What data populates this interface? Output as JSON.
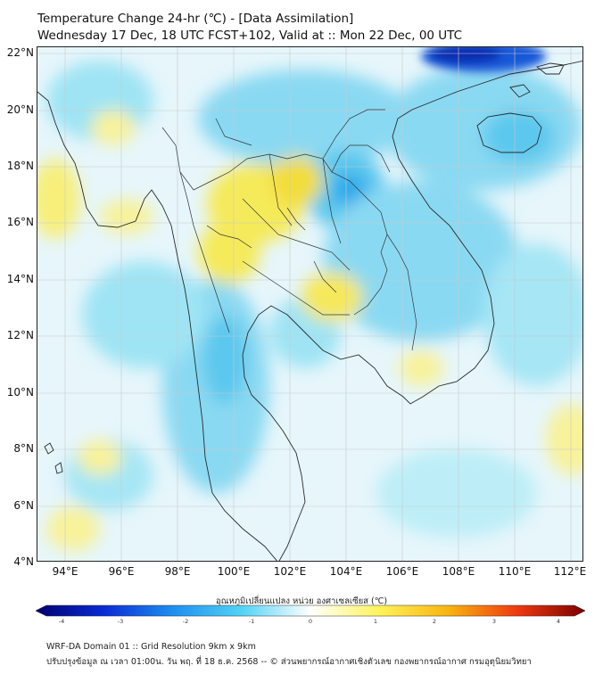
{
  "header": {
    "title_line1": "Temperature Change 24-hr (℃) - [Data Assimilation]",
    "title_line2": "Wednesday 17 Dec, 18 UTC FCST+102, Valid at :: Mon 22 Dec, 00 UTC"
  },
  "map": {
    "lat_labels": [
      "22°N",
      "20°N",
      "18°N",
      "16°N",
      "14°N",
      "12°N",
      "10°N",
      "8°N",
      "6°N",
      "4°N"
    ],
    "lon_labels": [
      "94°E",
      "96°E",
      "98°E",
      "100°E",
      "102°E",
      "104°E",
      "106°E",
      "108°E",
      "110°E",
      "112°E"
    ],
    "lat_range_deg": [
      4,
      22
    ],
    "lon_range_deg": [
      93,
      112.5
    ]
  },
  "colorbar": {
    "title": "อุณหภูมิเปลี่ยนแปลง หน่วย องศาเซลเซียส (℃)",
    "ticks": [
      "-4",
      "-3",
      "-2",
      "-1",
      "0",
      "1",
      "2",
      "3",
      "4"
    ],
    "range": [
      -4,
      4
    ],
    "colors": [
      "#00006e",
      "#0a2bd6",
      "#1e8ff0",
      "#52d3f5",
      "#ffffff",
      "#fff35a",
      "#f8b510",
      "#ef3b10",
      "#7a0000"
    ]
  },
  "footer": {
    "line1": "WRF-DA Domain 01 :: Grid Resolution 9km x 9km",
    "line2": "ปรับปรุงข้อมูล ณ เวลา 01:00น. วัน พฤ. ที่ 18 ธ.ค. 2568 -- © ส่วนพยากรณ์อากาศเชิงตัวเลข กองพยากรณ์อากาศ กรมอุตุนิยมวิทยา"
  }
}
